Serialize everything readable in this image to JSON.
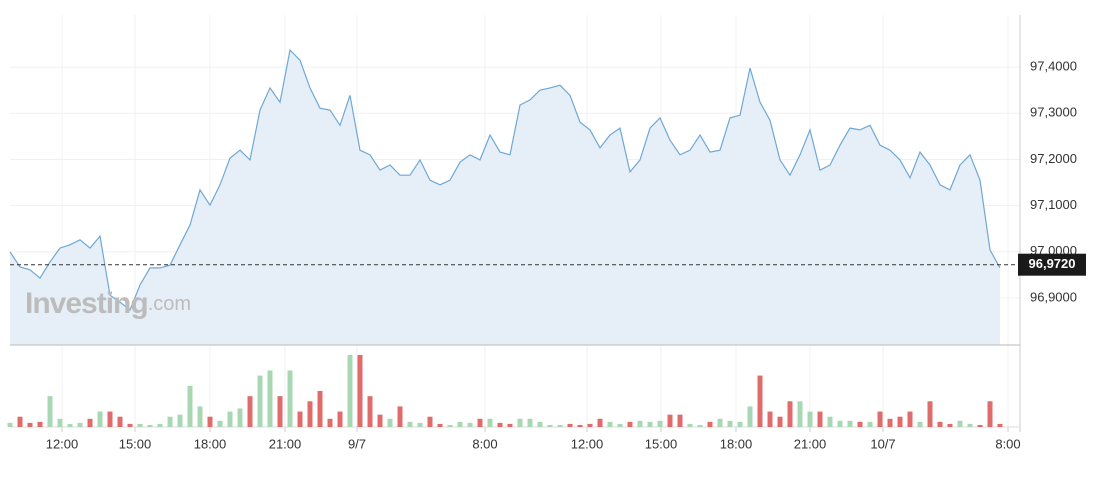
{
  "chart_data": {
    "type": "line",
    "color": "#6ea8d6",
    "fill": "#e6eff7",
    "values": [
      97.0,
      96.967,
      96.961,
      96.943,
      96.978,
      97.008,
      97.015,
      97.026,
      97.008,
      97.034,
      96.906,
      96.891,
      96.874,
      96.928,
      96.965,
      96.965,
      96.971,
      97.015,
      97.058,
      97.134,
      97.101,
      97.145,
      97.203,
      97.22,
      97.199,
      97.307,
      97.355,
      97.324,
      97.437,
      97.415,
      97.355,
      97.311,
      97.307,
      97.274,
      97.339,
      97.22,
      97.21,
      97.177,
      97.188,
      97.166,
      97.166,
      97.199,
      97.155,
      97.145,
      97.155,
      97.194,
      97.21,
      97.199,
      97.253,
      97.216,
      97.21,
      97.318,
      97.329,
      97.35,
      97.355,
      97.361,
      97.339,
      97.281,
      97.264,
      97.225,
      97.253,
      97.268,
      97.173,
      97.199,
      97.268,
      97.29,
      97.242,
      97.21,
      97.22,
      97.253,
      97.216,
      97.22,
      97.29,
      97.296,
      97.398,
      97.324,
      97.285,
      97.199,
      97.166,
      97.21,
      97.264,
      97.177,
      97.188,
      97.231,
      97.268,
      97.264,
      97.274,
      97.231,
      97.22,
      97.199,
      97.16,
      97.216,
      97.188,
      97.145,
      97.134,
      97.188,
      97.21,
      97.155,
      97.004,
      96.965
    ],
    "xlim": [
      0,
      99.5
    ],
    "xticks": [
      {
        "value": 5.2,
        "label": "12:00"
      },
      {
        "value": 12.5,
        "label": "15:00"
      },
      {
        "value": 20,
        "label": "18:00"
      },
      {
        "value": 27.5,
        "label": "21:00"
      },
      {
        "value": 34.7,
        "label": "9/7"
      },
      {
        "value": 47.5,
        "label": "8:00"
      },
      {
        "value": 57.7,
        "label": "12:00"
      },
      {
        "value": 65.1,
        "label": "15:00"
      },
      {
        "value": 72.6,
        "label": "18:00"
      },
      {
        "value": 80,
        "label": "21:00"
      },
      {
        "value": 87.3,
        "label": "10/7"
      },
      {
        "value": 99.8,
        "label": "8:00"
      }
    ],
    "ylim": [
      96.798,
      97.513
    ],
    "yticks": [
      {
        "value": 96.9,
        "label": "96,9000"
      },
      {
        "value": 97.0,
        "label": "97,0000"
      },
      {
        "value": 97.1,
        "label": "97,1000"
      },
      {
        "value": 97.2,
        "label": "97,2000"
      },
      {
        "value": 97.3,
        "label": "97,3000"
      },
      {
        "value": 97.4,
        "label": "97,4000"
      }
    ],
    "grid": true,
    "last": {
      "value": 96.972,
      "label": "96,9720"
    },
    "volume": {
      "up_color": "#a8d8b3",
      "down_color": "#e06b6b",
      "values": [
        4,
        10,
        4,
        5,
        30,
        8,
        3,
        4,
        8,
        15,
        15,
        10,
        3,
        3,
        2,
        3,
        10,
        12,
        40,
        20,
        10,
        6,
        15,
        18,
        30,
        50,
        55,
        30,
        55,
        15,
        25,
        35,
        8,
        15,
        70,
        70,
        30,
        12,
        8,
        20,
        5,
        4,
        10,
        3,
        2,
        5,
        4,
        8,
        8,
        4,
        3,
        8,
        8,
        5,
        2,
        2,
        3,
        2,
        3,
        8,
        5,
        3,
        5,
        6,
        5,
        6,
        12,
        12,
        3,
        2,
        5,
        8,
        6,
        5,
        20,
        50,
        15,
        10,
        25,
        25,
        15,
        15,
        10,
        6,
        6,
        5,
        5,
        15,
        8,
        10,
        15,
        5,
        25,
        5,
        3,
        6,
        3,
        2,
        25,
        3
      ]
    },
    "watermark": {
      "brand": "Investing",
      "suffix": ".com"
    }
  }
}
